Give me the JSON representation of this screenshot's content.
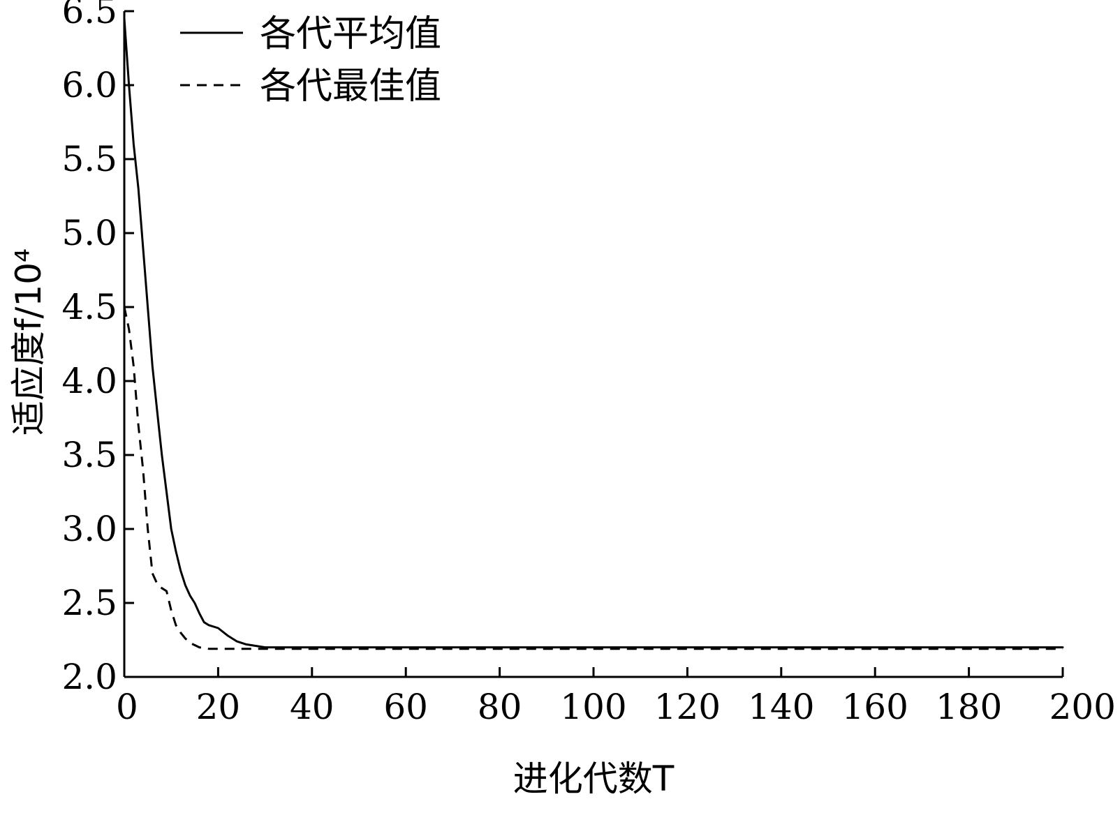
{
  "chart_data": {
    "type": "line",
    "title": "",
    "xlabel": "进化代数T",
    "ylabel": "适应度f/10⁴",
    "xlim": [
      0,
      200
    ],
    "ylim": [
      2.0,
      6.5
    ],
    "xticks": [
      0,
      20,
      40,
      60,
      80,
      100,
      120,
      140,
      160,
      180,
      200
    ],
    "xtick_labels": [
      "0",
      "20",
      "40",
      "60",
      "80",
      "100",
      "120",
      "140",
      "160",
      "180",
      "200"
    ],
    "yticks": [
      2.0,
      2.5,
      3.0,
      3.5,
      4.0,
      4.5,
      5.0,
      5.5,
      6.0,
      6.5
    ],
    "ytick_labels": [
      "2.0",
      "2.5",
      "3.0",
      "3.5",
      "4.0",
      "4.5",
      "5.0",
      "5.5",
      "6.0",
      "6.5"
    ],
    "grid": false,
    "legend_position": "top-left",
    "series": [
      {
        "name": "各代平均值",
        "style": "solid",
        "color": "#000000",
        "x": [
          0,
          1,
          2,
          3,
          4,
          5,
          6,
          7,
          8,
          9,
          10,
          11,
          12,
          13,
          14,
          15,
          16,
          17,
          18,
          20,
          22,
          24,
          26,
          28,
          30,
          40,
          60,
          100,
          150,
          200
        ],
        "y": [
          6.45,
          6.0,
          5.6,
          5.3,
          4.9,
          4.5,
          4.1,
          3.8,
          3.5,
          3.25,
          3.0,
          2.85,
          2.72,
          2.62,
          2.55,
          2.5,
          2.43,
          2.37,
          2.35,
          2.33,
          2.28,
          2.24,
          2.22,
          2.21,
          2.2,
          2.2,
          2.2,
          2.2,
          2.2,
          2.2
        ]
      },
      {
        "name": "各代最佳值",
        "style": "dashed",
        "color": "#000000",
        "x": [
          0,
          1,
          2,
          3,
          4,
          5,
          6,
          7,
          8,
          9,
          10,
          11,
          12,
          13,
          14,
          16,
          18,
          20,
          25,
          30,
          40,
          60,
          100,
          150,
          200
        ],
        "y": [
          4.5,
          4.35,
          4.1,
          3.7,
          3.4,
          3.0,
          2.7,
          2.63,
          2.6,
          2.58,
          2.45,
          2.35,
          2.3,
          2.26,
          2.23,
          2.2,
          2.19,
          2.19,
          2.19,
          2.19,
          2.19,
          2.19,
          2.19,
          2.19,
          2.19
        ]
      }
    ]
  }
}
